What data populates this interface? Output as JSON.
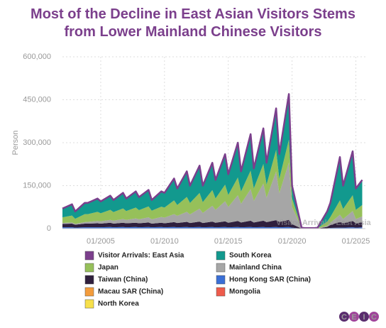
{
  "chart_data": {
    "type": "area",
    "title": "Most of the Decline in East Asian Visitors Stems from Lower Mainland Chinese Visitors",
    "y_label": "Person",
    "logo": [
      "C",
      "E",
      "I",
      "C"
    ],
    "x": [
      "01/2002",
      "10/2002",
      "01/2003",
      "10/2003",
      "01/2004",
      "10/2004",
      "01/2005",
      "10/2005",
      "01/2006",
      "10/2006",
      "01/2007",
      "10/2007",
      "01/2008",
      "10/2008",
      "01/2009",
      "10/2009",
      "01/2010",
      "10/2010",
      "01/2011",
      "10/2011",
      "01/2012",
      "10/2012",
      "01/2013",
      "10/2013",
      "01/2014",
      "10/2014",
      "01/2015",
      "10/2015",
      "01/2016",
      "10/2016",
      "01/2017",
      "10/2017",
      "01/2018",
      "10/2018",
      "01/2019",
      "10/2019",
      "01/2020",
      "10/2020",
      "01/2021",
      "10/2021",
      "01/2022",
      "10/2022",
      "01/2023",
      "10/2023",
      "01/2024",
      "10/2024",
      "01/2025",
      "07/2025"
    ],
    "xlim": [
      "01/2002",
      "10/2025"
    ],
    "xticks": [
      "01/2005",
      "01/2010",
      "01/2015",
      "01/2020",
      "01/2025"
    ],
    "ylim": [
      0,
      600000
    ],
    "yticks": [
      0,
      {
        "value": 150000,
        "label": "150,000"
      },
      {
        "value": 300000,
        "label": "300,000"
      },
      {
        "value": 450000,
        "label": "450,000"
      },
      {
        "value": 600000,
        "label": "600,000"
      }
    ],
    "grid": true,
    "series": [
      {
        "name": "Visitor Arrivals: East Asia",
        "type": "line",
        "color": "#7b3f8c",
        "values": [
          70000,
          85000,
          60000,
          90000,
          90000,
          105000,
          95000,
          115000,
          100000,
          125000,
          105000,
          130000,
          110000,
          135000,
          100000,
          130000,
          125000,
          175000,
          140000,
          200000,
          150000,
          220000,
          150000,
          230000,
          170000,
          260000,
          190000,
          300000,
          200000,
          330000,
          210000,
          350000,
          230000,
          420000,
          260000,
          470000,
          150000,
          3000,
          2000,
          2000,
          3000,
          60000,
          90000,
          250000,
          150000,
          270000,
          140000,
          170000
        ]
      },
      {
        "name": "South Korea",
        "type": "area",
        "color": "#12998e",
        "values": [
          30500,
          39500,
          25500,
          39500,
          39500,
          46500,
          41500,
          49500,
          42500,
          54500,
          43500,
          56500,
          45500,
          57500,
          37500,
          53500,
          51500,
          76500,
          57500,
          89500,
          60500,
          95500,
          57500,
          95500,
          64500,
          106500,
          72500,
          121500,
          70500,
          127500,
          69500,
          124500,
          76500,
          145500,
          86500,
          159500,
          44500,
          700,
          500,
          600,
          1000,
          35800,
          49600,
          151500,
          81500,
          153500,
          74500,
          87500
        ]
      },
      {
        "name": "Japan",
        "type": "area",
        "color": "#96c05a",
        "values": [
          20000,
          24000,
          18000,
          28000,
          27000,
          32000,
          28000,
          35000,
          30000,
          37000,
          31000,
          38000,
          32000,
          38000,
          30000,
          36000,
          35000,
          48000,
          38000,
          52000,
          40000,
          55000,
          38000,
          55000,
          40000,
          58000,
          42000,
          62000,
          43000,
          65000,
          44000,
          68000,
          46000,
          75000,
          50000,
          80000,
          30000,
          500,
          300,
          300,
          500,
          15000,
          20000,
          50000,
          35000,
          55000,
          32000,
          40000
        ]
      },
      {
        "name": "Mainland China",
        "type": "area",
        "color": "#a6a6a6",
        "values": [
          3000,
          4000,
          3000,
          5000,
          6000,
          8000,
          8000,
          10000,
          10000,
          13000,
          12000,
          15000,
          14000,
          18000,
          15000,
          20000,
          20000,
          28000,
          25000,
          35000,
          30000,
          45000,
          35000,
          55000,
          45000,
          70000,
          55000,
          90000,
          65000,
          110000,
          75000,
          130000,
          85000,
          170000,
          100000,
          200000,
          60000,
          1500,
          1000,
          900,
          1200,
          3000,
          8000,
          25000,
          15000,
          35000,
          15000,
          20000
        ]
      },
      {
        "name": "Taiwan (China)",
        "type": "area",
        "color": "#2f1f3d",
        "values": [
          12000,
          13000,
          10000,
          13000,
          13000,
          14000,
          13000,
          15000,
          13000,
          15000,
          14000,
          15000,
          14000,
          16000,
          13000,
          15000,
          14000,
          17000,
          15000,
          18000,
          15000,
          19000,
          15000,
          19000,
          16000,
          20000,
          16000,
          21000,
          17000,
          22000,
          17000,
          22000,
          18000,
          24000,
          19000,
          25000,
          12000,
          200,
          100,
          100,
          200,
          5000,
          10000,
          20000,
          15000,
          22000,
          15000,
          18000
        ]
      },
      {
        "name": "Hong Kong SAR (China)",
        "type": "area",
        "color": "#3a6fd6",
        "values": [
          4000,
          4000,
          3000,
          4000,
          4000,
          4000,
          4000,
          5000,
          4000,
          5000,
          4000,
          5000,
          4000,
          5000,
          4000,
          5000,
          4000,
          5000,
          4000,
          5000,
          4000,
          5000,
          4000,
          5000,
          4000,
          5000,
          4000,
          5000,
          4000,
          5000,
          4000,
          5000,
          4000,
          5000,
          4000,
          5000,
          3000,
          100,
          100,
          100,
          100,
          1000,
          2000,
          3000,
          3000,
          4000,
          3000,
          4000
        ]
      },
      {
        "name": "Macau SAR (China)",
        "type": "area",
        "color": "#f39c3c",
        "values": [
          300,
          300,
          300,
          300,
          300,
          300,
          300,
          300,
          300,
          300,
          300,
          300,
          300,
          300,
          300,
          300,
          300,
          300,
          300,
          300,
          300,
          300,
          300,
          300,
          300,
          300,
          300,
          300,
          300,
          300,
          300,
          300,
          300,
          300,
          300,
          300,
          300,
          0,
          0,
          0,
          0,
          100,
          200,
          300,
          300,
          300,
          300,
          300
        ]
      },
      {
        "name": "Mongolia",
        "type": "area",
        "color": "#ee5b4b",
        "values": [
          200,
          200,
          200,
          200,
          200,
          200,
          200,
          200,
          200,
          200,
          200,
          200,
          200,
          200,
          200,
          200,
          200,
          200,
          200,
          200,
          200,
          200,
          200,
          200,
          200,
          200,
          200,
          200,
          200,
          200,
          200,
          200,
          200,
          200,
          200,
          200,
          200,
          0,
          0,
          0,
          0,
          100,
          200,
          200,
          200,
          200,
          200,
          200
        ]
      },
      {
        "name": "North Korea",
        "type": "area",
        "color": "#f7e04b",
        "values": [
          0,
          0,
          0,
          0,
          0,
          0,
          0,
          0,
          0,
          0,
          0,
          0,
          0,
          0,
          0,
          0,
          0,
          0,
          0,
          0,
          0,
          0,
          0,
          0,
          0,
          0,
          0,
          0,
          0,
          0,
          0,
          0,
          0,
          0,
          0,
          0,
          0,
          0,
          0,
          0,
          0,
          0,
          0,
          0,
          0,
          0,
          0,
          0
        ]
      }
    ]
  }
}
